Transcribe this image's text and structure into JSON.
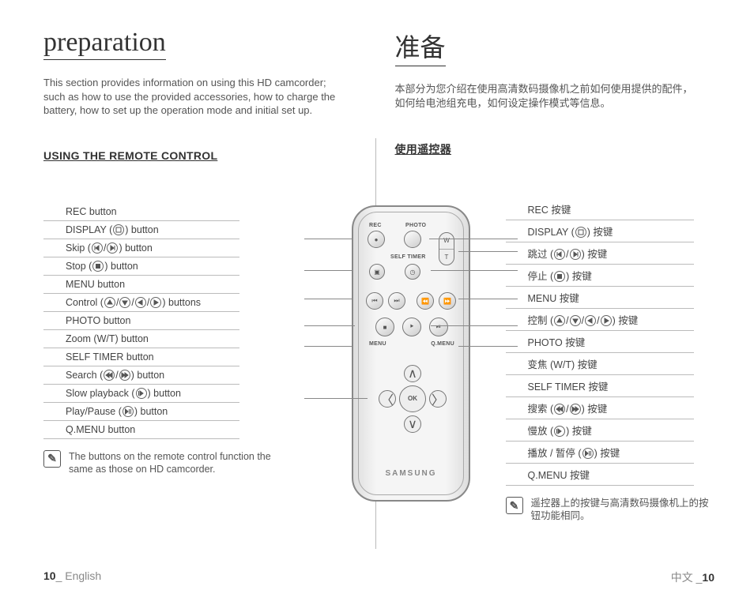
{
  "left": {
    "title": "preparation",
    "intro": "This section provides information on using this HD camcorder; such as how to use the provided accessories, how to charge the battery, how to set up the operation mode and initial set up.",
    "heading": "USING THE REMOTE CONTROL",
    "rows": [
      {
        "pre": "REC button",
        "icons": [],
        "post": ""
      },
      {
        "pre": "DISPLAY (",
        "icons": [
          "display"
        ],
        "post": ") button"
      },
      {
        "pre": "Skip (",
        "icons": [
          "skip-b",
          "skip-f"
        ],
        "post": ") button"
      },
      {
        "pre": "Stop (",
        "icons": [
          "stop"
        ],
        "post": ") button"
      },
      {
        "pre": "MENU button",
        "icons": [],
        "post": ""
      },
      {
        "pre": "Control (",
        "icons": [
          "up",
          "down",
          "left",
          "right"
        ],
        "post": ") buttons"
      },
      {
        "pre": "PHOTO button",
        "icons": [],
        "post": ""
      },
      {
        "pre": "Zoom (W/T) button",
        "icons": [],
        "post": ""
      },
      {
        "pre": "SELF TIMER button",
        "icons": [],
        "post": ""
      },
      {
        "pre": "Search (",
        "icons": [
          "rew",
          "ff"
        ],
        "post": ") button"
      },
      {
        "pre": "Slow playback (",
        "icons": [
          "slow"
        ],
        "post": ") button"
      },
      {
        "pre": "Play/Pause (",
        "icons": [
          "playpause"
        ],
        "post": ") button"
      },
      {
        "pre": "Q.MENU button",
        "icons": [],
        "post": ""
      }
    ],
    "note": "The buttons on the remote control function the same as those on HD camcorder.",
    "footer_bold": "10",
    "footer_rest": "_ English"
  },
  "right": {
    "title": "准备",
    "intro": "本部分为您介绍在使用高清数码摄像机之前如何使用提供的配件，如何给电池组充电，如何设定操作模式等信息。",
    "heading": "使用遥控器",
    "rows": [
      {
        "pre": "REC 按键",
        "icons": [],
        "post": ""
      },
      {
        "pre": "DISPLAY (",
        "icons": [
          "display"
        ],
        "post": ") 按键"
      },
      {
        "pre": "跳过  (",
        "icons": [
          "skip-b",
          "skip-f"
        ],
        "post": ") 按键"
      },
      {
        "pre": "停止 (",
        "icons": [
          "stop"
        ],
        "post": ") 按键"
      },
      {
        "pre": "MENU  按键",
        "icons": [],
        "post": ""
      },
      {
        "pre": "控制 (",
        "icons": [
          "up",
          "down",
          "left",
          "right"
        ],
        "post": ") 按键"
      },
      {
        "pre": "PHOTO 按键",
        "icons": [],
        "post": ""
      },
      {
        "pre": "变焦 (W/T)  按键",
        "icons": [],
        "post": ""
      },
      {
        "pre": "SELF TIMER  按键",
        "icons": [],
        "post": ""
      },
      {
        "pre": "搜索  (",
        "icons": [
          "rew",
          "ff"
        ],
        "post": ") 按键"
      },
      {
        "pre": "慢放  (",
        "icons": [
          "slow"
        ],
        "post": ") 按键"
      },
      {
        "pre": "播放 / 暂停  (",
        "icons": [
          "playpause"
        ],
        "post": ") 按键"
      },
      {
        "pre": "Q.MENU 按键",
        "icons": [],
        "post": ""
      }
    ],
    "note": "遥控器上的按键与高清数码摄像机上的按钮功能相同。",
    "footer_pre": "中文 _",
    "footer_bold": "10"
  },
  "remote": {
    "labels": {
      "rec": "REC",
      "photo": "PHOTO",
      "timer": "SELF TIMER",
      "menu": "MENU",
      "qmenu": "Q.MENU",
      "ok": "OK",
      "w": "W",
      "t": "T"
    },
    "brand": "SAMSUNG"
  }
}
